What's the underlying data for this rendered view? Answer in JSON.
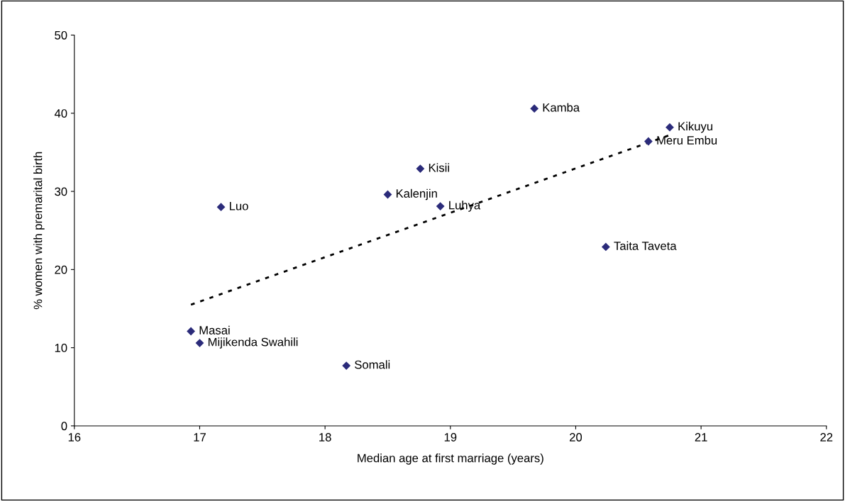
{
  "chart_data": {
    "type": "scatter",
    "xlabel": "Median age at first marriage (years)",
    "ylabel": "% women with premarital birth",
    "x": [
      16.93,
      17.0,
      18.17,
      17.17,
      18.5,
      18.76,
      18.92,
      19.67,
      20.75,
      20.58,
      20.24
    ],
    "series": [
      {
        "color": "#2b2b7a",
        "marker": "diamond",
        "values": [
          12.1,
          10.6,
          7.7,
          28.0,
          29.6,
          32.9,
          28.1,
          40.6,
          38.2,
          36.4,
          22.9
        ]
      },
      {
        "type": "line",
        "color": "#000000",
        "line_style": "dotted",
        "marker": "none",
        "x": [
          16.93,
          20.75
        ],
        "values": [
          15.5,
          37.2
        ]
      }
    ],
    "annotations": [
      {
        "text": "Masai",
        "x": 16.93,
        "y": 12.1
      },
      {
        "text": "Mijikenda Swahili",
        "x": 17.0,
        "y": 10.6
      },
      {
        "text": "Somali",
        "x": 18.17,
        "y": 7.7
      },
      {
        "text": "Luo",
        "x": 17.17,
        "y": 28.0
      },
      {
        "text": "Kalenjin",
        "x": 18.5,
        "y": 29.6
      },
      {
        "text": "Kisii",
        "x": 18.76,
        "y": 32.9
      },
      {
        "text": "Luhya",
        "x": 18.92,
        "y": 28.1
      },
      {
        "text": "Kamba",
        "x": 19.67,
        "y": 40.6
      },
      {
        "text": "Kikuyu",
        "x": 20.75,
        "y": 38.2
      },
      {
        "text": "Meru Embu",
        "x": 20.58,
        "y": 36.4
      },
      {
        "text": "Taita Taveta",
        "x": 20.24,
        "y": 22.9
      }
    ],
    "xlim": [
      16,
      22
    ],
    "xticks": [
      16,
      17,
      18,
      19,
      20,
      21,
      22
    ],
    "ylim": [
      0,
      50
    ],
    "yticks": [
      0,
      10,
      20,
      30,
      40,
      50
    ],
    "grid": false,
    "legend": false
  }
}
